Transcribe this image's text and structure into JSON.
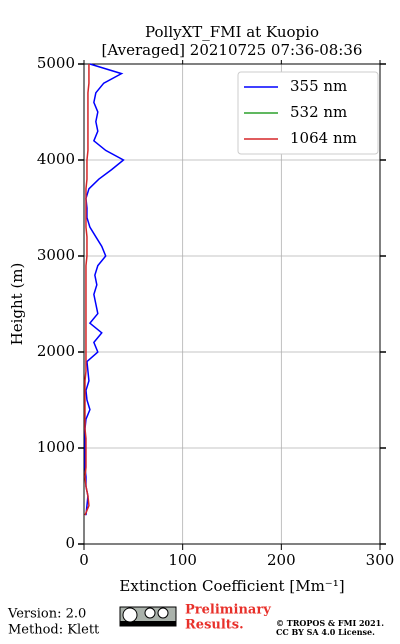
{
  "chart_data": {
    "type": "profile",
    "title": "PollyXT_FMI at Kuopio",
    "subtitle": "[Averaged] 20210725 07:36-08:36",
    "x_label": "Extinction Coefficient [Mm⁻¹]",
    "y_label": "Height (m)",
    "xlim": [
      0,
      300
    ],
    "xticks": [
      0,
      100,
      200,
      300
    ],
    "ylim": [
      0,
      5000
    ],
    "yticks": [
      0,
      1000,
      2000,
      3000,
      4000,
      5000
    ],
    "grid": true,
    "legend": "upper right",
    "heights": [
      300,
      400,
      500,
      600,
      700,
      800,
      900,
      1000,
      1100,
      1200,
      1300,
      1400,
      1500,
      1600,
      1700,
      1800,
      1900,
      2000,
      2100,
      2200,
      2300,
      2400,
      2500,
      2600,
      2700,
      2800,
      2900,
      3000,
      3100,
      3200,
      3300,
      3400,
      3500,
      3600,
      3700,
      3800,
      3900,
      4000,
      4100,
      4200,
      4300,
      4400,
      4500,
      4600,
      4700,
      4800,
      4900,
      5000
    ],
    "series": [
      {
        "name": "355 nm",
        "color": "#0000ff",
        "values": [
          2,
          3,
          4,
          2,
          2,
          1,
          1,
          1,
          1,
          1,
          2,
          6,
          3,
          2,
          5,
          4,
          3,
          14,
          10,
          18,
          6,
          14,
          12,
          10,
          13,
          11,
          14,
          22,
          18,
          12,
          6,
          3,
          3,
          2,
          5,
          15,
          28,
          40,
          22,
          10,
          14,
          12,
          14,
          10,
          12,
          20,
          38,
          6
        ]
      },
      {
        "name": "532 nm",
        "color": "#2ca02c",
        "values": [
          null,
          null,
          null,
          null,
          null,
          null,
          null,
          null,
          null,
          null,
          null,
          null,
          null,
          null,
          null,
          null,
          null,
          null,
          null,
          null,
          null,
          null,
          null,
          null,
          null,
          null,
          null,
          null,
          null,
          null,
          null,
          null,
          null,
          null,
          null,
          null,
          null,
          null,
          null,
          null,
          null,
          null,
          null,
          null,
          null,
          null,
          null,
          null
        ]
      },
      {
        "name": "1064 nm",
        "color": "#d62728",
        "values": [
          1,
          5,
          4,
          2,
          1,
          2,
          2,
          2,
          2,
          1,
          1,
          1,
          1,
          1,
          1,
          2,
          2,
          2,
          2,
          2,
          2,
          2,
          2,
          2,
          2,
          2,
          2,
          3,
          3,
          3,
          2,
          2,
          2,
          2,
          2,
          3,
          3,
          3,
          4,
          4,
          4,
          4,
          4,
          4,
          4,
          5,
          5,
          5
        ]
      }
    ]
  },
  "footer": {
    "version": "Version: 2.0",
    "method": "Method: Klett",
    "preliminary": [
      "Preliminary",
      "Results."
    ],
    "license": [
      "© TROPOS & FMI 2021.",
      "CC BY SA 4.0 License."
    ]
  }
}
